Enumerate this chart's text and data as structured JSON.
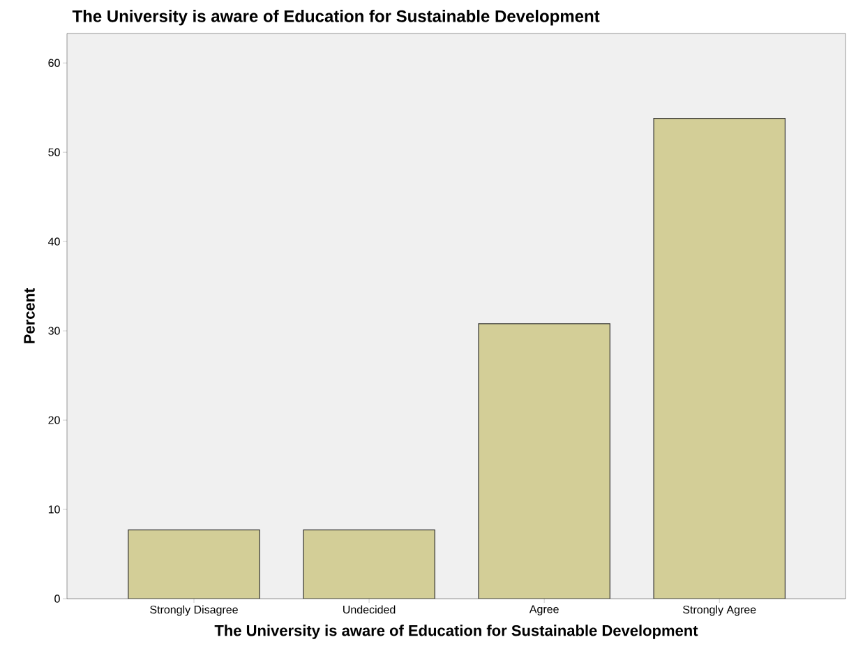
{
  "chart_data": {
    "type": "bar",
    "title": "The University is aware of Education for Sustainable Development",
    "xlabel": "The University is aware of Education for Sustainable Development",
    "ylabel": "Percent",
    "categories": [
      "Strongly Disagree",
      "Undecided",
      "Agree",
      "Strongly Agree"
    ],
    "values": [
      7.7,
      7.7,
      30.8,
      53.8
    ],
    "color": "#d3ce97",
    "ylim": [
      0,
      63.3
    ],
    "yticks": [
      0,
      10,
      20,
      30,
      40,
      50,
      60
    ],
    "grid": false
  }
}
